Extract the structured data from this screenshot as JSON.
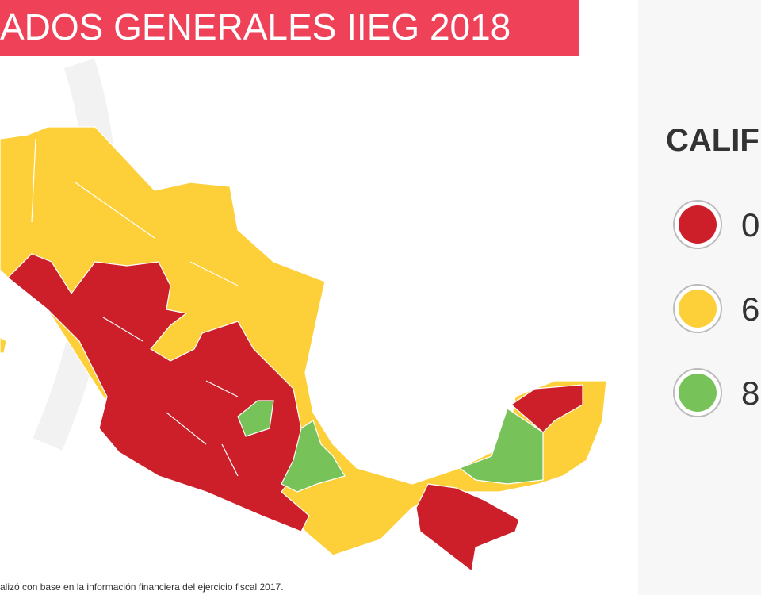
{
  "header": {
    "title": "ADOS GENERALES IIEG 2018"
  },
  "legend": {
    "title": "CALIF",
    "items": [
      {
        "label": "0",
        "color": "#cc1f2a"
      },
      {
        "label": "6",
        "color": "#fdd03a"
      },
      {
        "label": "8",
        "color": "#78c25a"
      }
    ]
  },
  "footnote": "alizó con base en la información financiera del ejercicio fiscal 2017."
}
